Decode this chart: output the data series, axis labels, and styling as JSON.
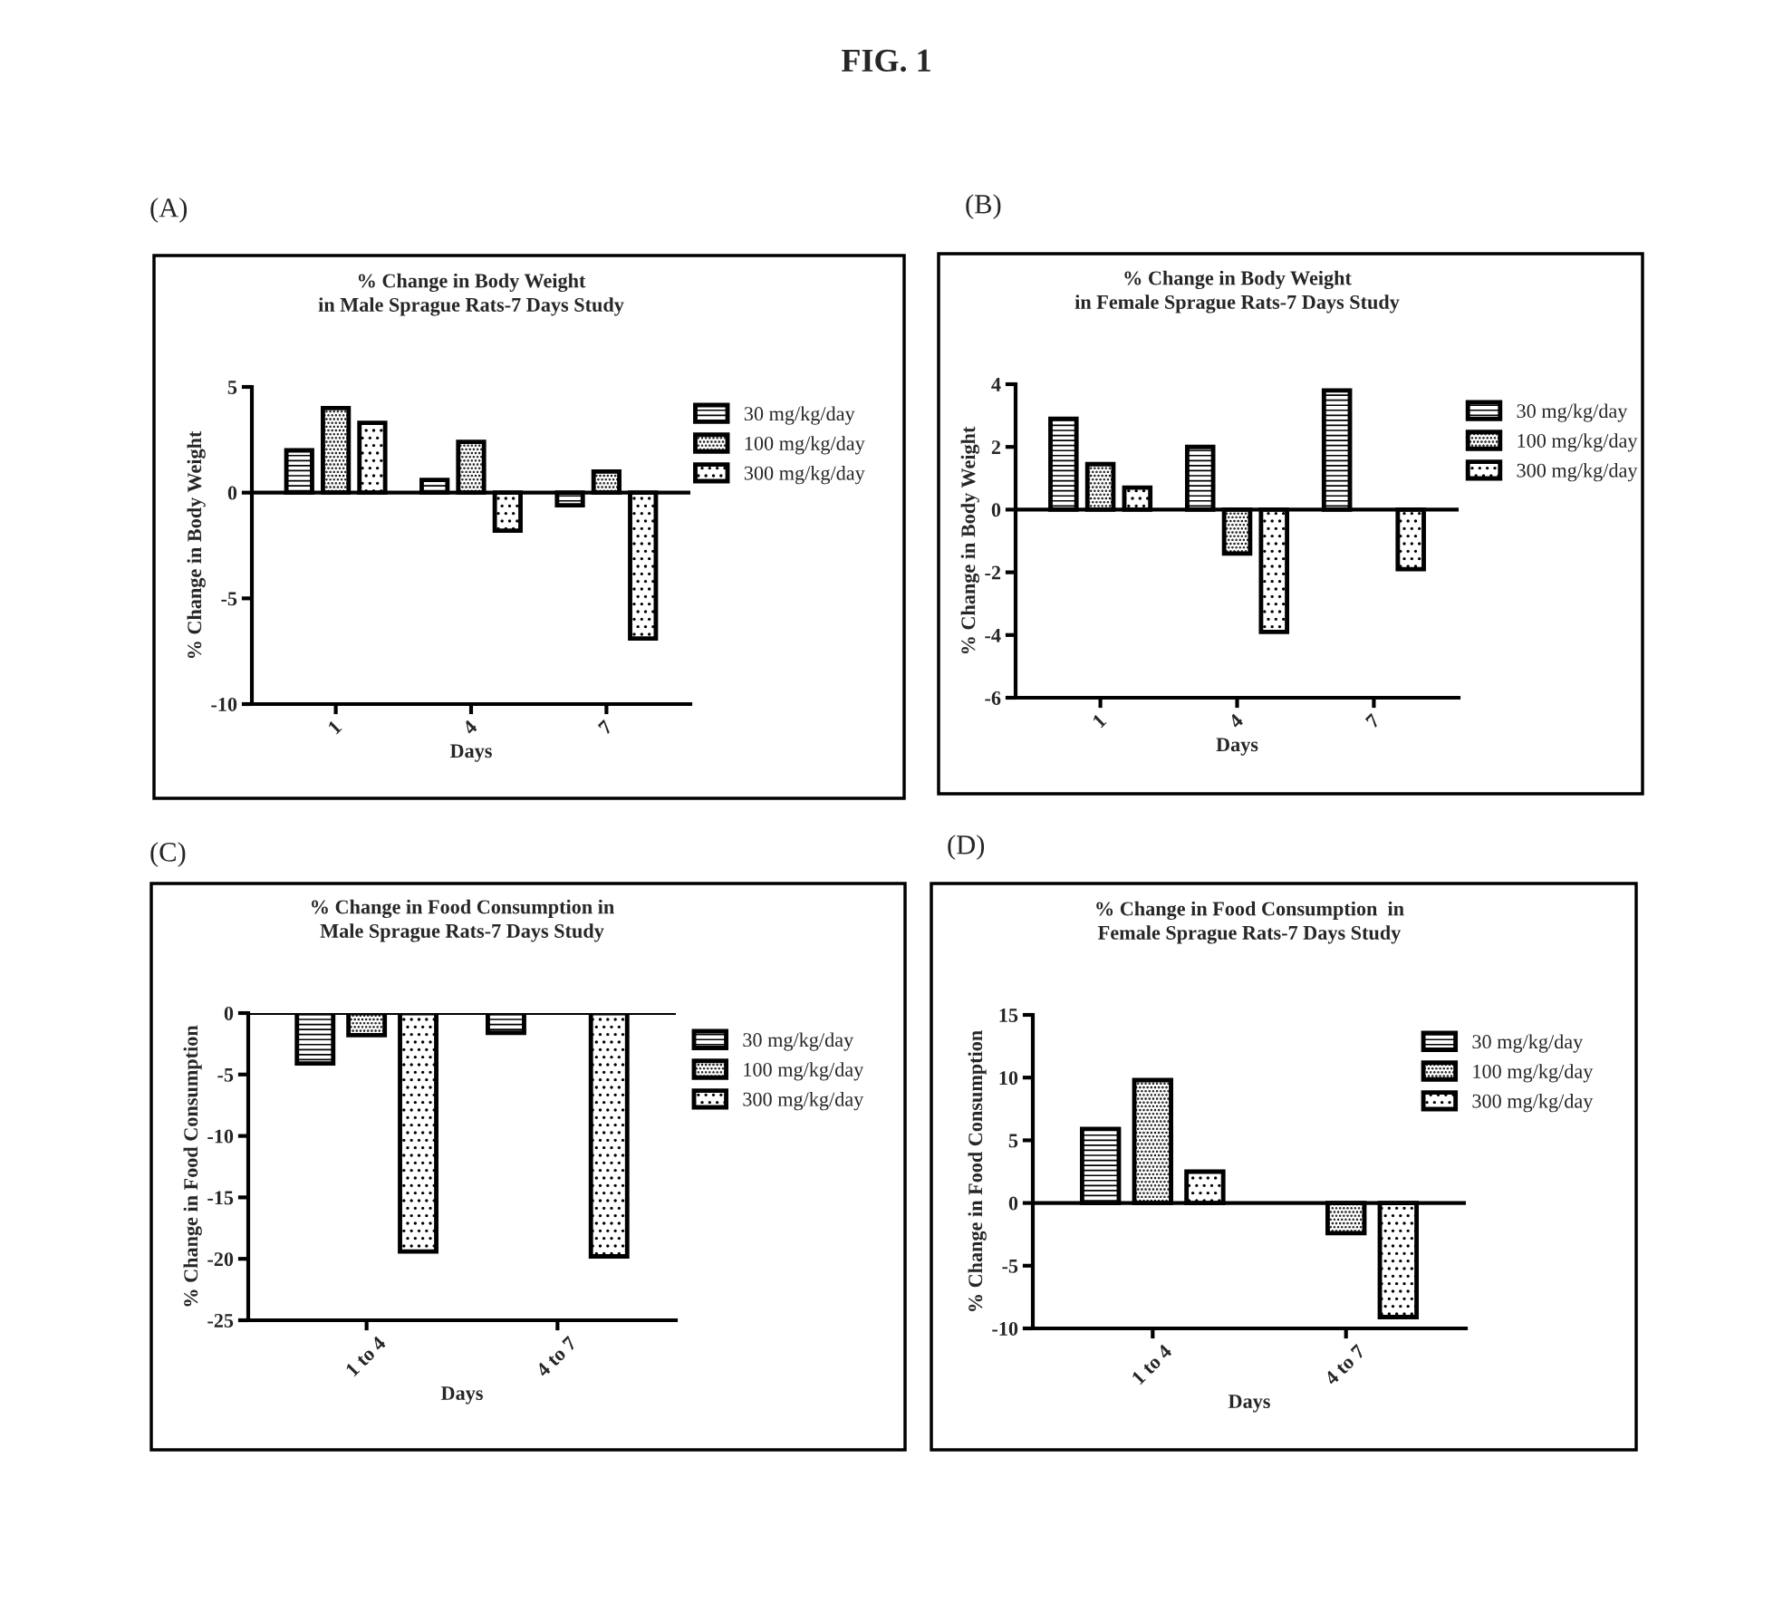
{
  "chart_data": [
    {
      "type": "bar",
      "title": "% Change in Body Weight\nin Male Sprague Rats-7 Days Study",
      "xlabel": "Days",
      "ylabel": "% Change in Body Weight",
      "annotations": [
        "FIG. 1",
        "(A)"
      ],
      "categories": [
        "1",
        "4",
        "7"
      ],
      "ylim": [
        -10,
        5
      ],
      "yticks": [
        -10,
        -5,
        0,
        5
      ],
      "legend": "right",
      "series": [
        {
          "name": "30 mg/kg/day",
          "color": "#000000",
          "values": [
            2.0,
            0.6,
            -0.6
          ]
        },
        {
          "name": "100 mg/kg/day",
          "color": "#000000",
          "values": [
            4.0,
            2.4,
            1.0
          ]
        },
        {
          "name": "300 mg/kg/day",
          "color": "#000000",
          "values": [
            3.3,
            -1.8,
            -6.9
          ]
        }
      ]
    },
    {
      "type": "bar",
      "title": "% Change in Body Weight\nin Female Sprague Rats-7 Days Study",
      "xlabel": "Days",
      "ylabel": "% Change in Body Weight",
      "annotations": [
        "(B)"
      ],
      "categories": [
        "1",
        "4",
        "7"
      ],
      "ylim": [
        -6,
        4
      ],
      "yticks": [
        -6,
        -4,
        -2,
        0,
        2,
        4
      ],
      "legend": "right",
      "series": [
        {
          "name": "30 mg/kg/day",
          "color": "#000000",
          "values": [
            2.9,
            2.0,
            3.8
          ]
        },
        {
          "name": "100 mg/kg/day",
          "color": "#000000",
          "values": [
            1.45,
            -1.4,
            null
          ]
        },
        {
          "name": "300 mg/kg/day",
          "color": "#000000",
          "values": [
            0.7,
            -3.9,
            -1.9
          ]
        }
      ]
    },
    {
      "type": "bar",
      "title": "% Change in Food Consumption in\nMale Sprague Rats-7 Days Study",
      "xlabel": "Days",
      "ylabel": "% Change in Food Consumption",
      "annotations": [
        "(C)"
      ],
      "categories": [
        "1 to 4",
        "4 to 7"
      ],
      "ylim": [
        -25,
        0
      ],
      "yticks": [
        -25,
        -20,
        -15,
        -10,
        -5,
        0
      ],
      "legend": "right",
      "series": [
        {
          "name": "30 mg/kg/day",
          "color": "#000000",
          "values": [
            -4.1,
            -1.6
          ]
        },
        {
          "name": "100 mg/kg/day",
          "color": "#000000",
          "values": [
            -1.8,
            null
          ]
        },
        {
          "name": "300 mg/kg/day",
          "color": "#000000",
          "values": [
            -19.4,
            -19.8
          ]
        }
      ]
    },
    {
      "type": "bar",
      "title": "% Change in Food Consumption  in\nFemale Sprague Rats-7 Days Study",
      "xlabel": "Days",
      "ylabel": "% Change in Food Consumption",
      "annotations": [
        "(D)"
      ],
      "categories": [
        "1 to 4",
        "4 to 7"
      ],
      "ylim": [
        -10,
        15
      ],
      "yticks": [
        -10,
        -5,
        0,
        5,
        10,
        15
      ],
      "legend": "right",
      "series": [
        {
          "name": "30 mg/kg/day",
          "color": "#000000",
          "values": [
            5.9,
            null
          ]
        },
        {
          "name": "100 mg/kg/day",
          "color": "#000000",
          "values": [
            9.8,
            -2.4
          ]
        },
        {
          "name": "300 mg/kg/day",
          "color": "#000000",
          "values": [
            2.5,
            -9.1
          ]
        }
      ]
    }
  ]
}
